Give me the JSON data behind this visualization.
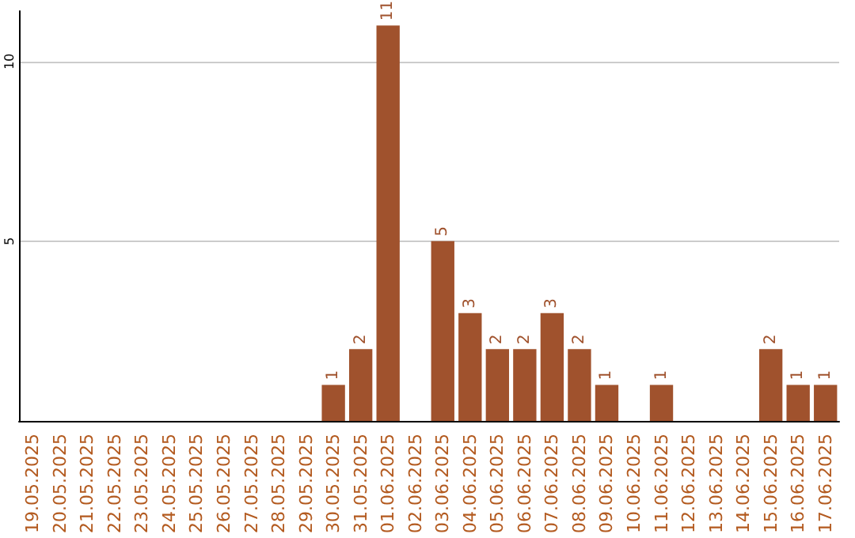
{
  "chart_data": {
    "type": "bar",
    "categories": [
      "19.05.2025",
      "20.05.2025",
      "21.05.2025",
      "22.05.2025",
      "23.05.2025",
      "24.05.2025",
      "25.05.2025",
      "26.05.2025",
      "27.05.2025",
      "28.05.2025",
      "29.05.2025",
      "30.05.2025",
      "31.05.2025",
      "01.06.2025",
      "02.06.2025",
      "03.06.2025",
      "04.06.2025",
      "05.06.2025",
      "06.06.2025",
      "07.06.2025",
      "08.06.2025",
      "09.06.2025",
      "10.06.2025",
      "11.06.2025",
      "12.06.2025",
      "13.06.2025",
      "14.06.2025",
      "15.06.2025",
      "16.06.2025",
      "17.06.2025"
    ],
    "values": [
      0,
      0,
      0,
      0,
      0,
      0,
      0,
      0,
      0,
      0,
      0,
      1,
      2,
      11,
      0,
      5,
      3,
      2,
      2,
      3,
      2,
      1,
      0,
      1,
      0,
      0,
      0,
      2,
      1,
      1
    ],
    "value_labels": [
      null,
      null,
      null,
      null,
      null,
      null,
      null,
      null,
      null,
      null,
      null,
      "1",
      "2",
      "11",
      null,
      "5",
      "3",
      "2",
      "2",
      "3",
      "2",
      "1",
      null,
      "1",
      null,
      null,
      null,
      "2",
      "1",
      "1"
    ],
    "color": "#a0522d",
    "ylim": [
      0,
      11.4
    ],
    "yticks": [
      5,
      10
    ],
    "grid": "y"
  }
}
